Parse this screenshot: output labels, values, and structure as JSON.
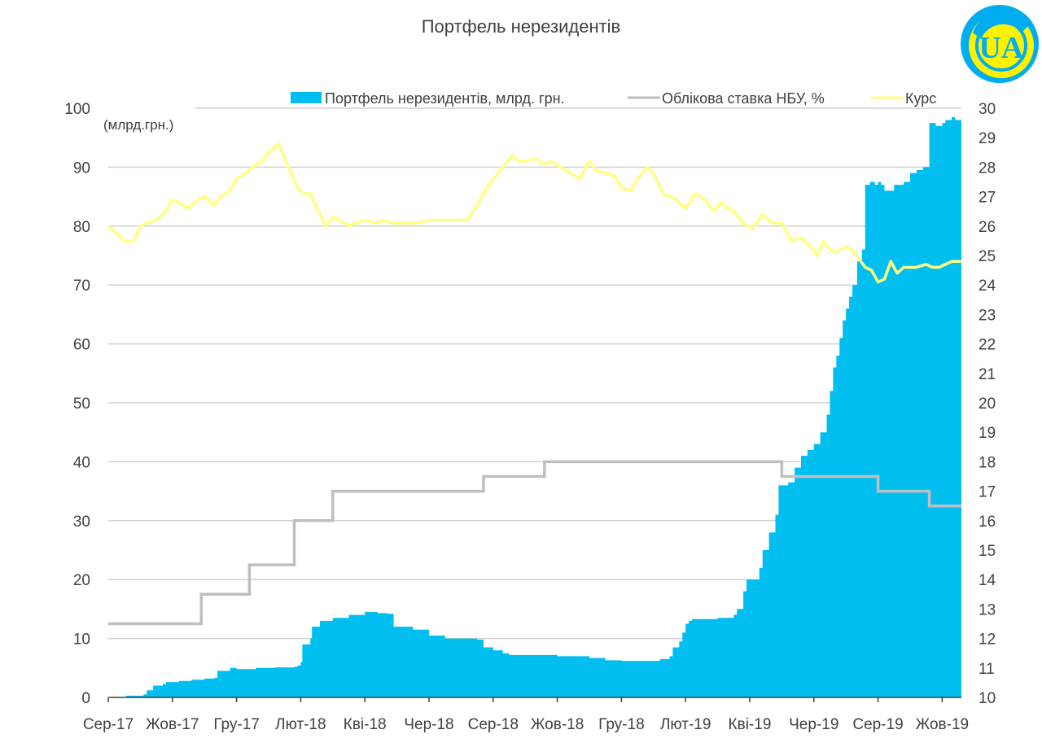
{
  "chart_data": {
    "type": "area",
    "title": "Портфель нерезидентів",
    "unit_label": "(млрд.грн.)",
    "categories": [
      "Сер-17",
      "Жов-17",
      "Гру-17",
      "Лют-18",
      "Кві-18",
      "Чер-18",
      "Сер-18",
      "Жов-18",
      "Гру-18",
      "Лют-19",
      "Кві-19",
      "Чер-19",
      "Сер-19",
      "Жов-19"
    ],
    "category_months": [
      0,
      2,
      4,
      6,
      8,
      10,
      12,
      14,
      16,
      18,
      20,
      22,
      24,
      26
    ],
    "x_range_months": [
      0,
      26.6
    ],
    "y_left": {
      "min": 0,
      "max": 100,
      "ticks": [
        0,
        10,
        20,
        30,
        40,
        50,
        60,
        70,
        80,
        90,
        100
      ]
    },
    "y_right": {
      "min": 10,
      "max": 30,
      "ticks": [
        10,
        11,
        12,
        13,
        14,
        15,
        16,
        17,
        18,
        19,
        20,
        21,
        22,
        23,
        24,
        25,
        26,
        27,
        28,
        29,
        30
      ]
    },
    "grid": true,
    "legend_position": "top",
    "series": [
      {
        "name": "Портфель нерезидентів, млрд. грн.",
        "type": "area",
        "axis": "left",
        "color": "#00BFF0",
        "x": [
          0,
          0.5,
          0.55,
          1.1,
          1.2,
          1.4,
          1.7,
          1.8,
          2.2,
          2.6,
          3.0,
          3.3,
          3.4,
          3.8,
          4.0,
          4.5,
          4.6,
          5.2,
          5.8,
          5.9,
          6.0,
          6.05,
          6.3,
          6.35,
          6.6,
          7.0,
          7.5,
          8.0,
          8.4,
          8.7,
          8.9,
          9.5,
          10.0,
          10.5,
          11.0,
          11.5,
          11.7,
          12.0,
          12.3,
          12.5,
          13.0,
          14.0,
          15.0,
          15.5,
          16.0,
          16.5,
          17.2,
          17.5,
          17.6,
          17.8,
          17.9,
          18.0,
          18.1,
          18.2,
          18.6,
          19.0,
          19.5,
          19.6,
          19.8,
          19.9,
          20.3,
          20.4,
          20.6,
          20.8,
          20.9,
          21.0,
          21.2,
          21.4,
          21.6,
          21.8,
          22.0,
          22.2,
          22.4,
          22.5,
          22.6,
          22.7,
          22.8,
          22.9,
          23.0,
          23.1,
          23.2,
          23.35,
          23.5,
          23.6,
          23.75,
          23.9,
          24.0,
          24.1,
          24.2,
          24.5,
          24.8,
          25.0,
          25.2,
          25.4,
          25.6,
          25.8,
          26.0,
          26.1,
          26.3,
          26.4,
          26.6
        ],
        "values": [
          0,
          0,
          0.3,
          0.5,
          1.2,
          2.0,
          2.3,
          2.6,
          2.8,
          3.0,
          3.2,
          3.3,
          4.5,
          5.0,
          4.8,
          4.8,
          5.0,
          5.1,
          5.2,
          5.4,
          6.0,
          9.0,
          10.0,
          12.0,
          13.0,
          13.5,
          14.0,
          14.5,
          14.3,
          14.2,
          12.0,
          11.5,
          10.5,
          10.0,
          10.0,
          9.8,
          8.5,
          8.0,
          7.5,
          7.2,
          7.2,
          7.0,
          6.7,
          6.3,
          6.2,
          6.2,
          6.5,
          7.0,
          8.5,
          9.5,
          11.0,
          12.5,
          13.0,
          13.3,
          13.3,
          13.5,
          14.0,
          15.0,
          18.0,
          20.0,
          22.0,
          25.0,
          28.0,
          31.0,
          36.0,
          36.0,
          36.5,
          39.0,
          41.0,
          42.0,
          43.0,
          45.0,
          48.0,
          52.0,
          56.0,
          58.0,
          61.0,
          64.0,
          66.0,
          68.0,
          70.0,
          74.0,
          76.0,
          87.0,
          87.5,
          87.0,
          87.5,
          87.0,
          86.0,
          87.0,
          87.5,
          89.0,
          89.5,
          90.0,
          97.5,
          97.0,
          97.5,
          98.0,
          98.5,
          98.0,
          98.0
        ]
      },
      {
        "name": "Облікова ставка НБУ, %",
        "type": "step",
        "axis": "right",
        "color": "#BFBFBF",
        "x": [
          0,
          2.9,
          4.4,
          5.8,
          7.0,
          11.7,
          13.6,
          21.0,
          24.0,
          25.6,
          26.6
        ],
        "values": [
          12.5,
          13.5,
          14.5,
          16.0,
          17.0,
          17.5,
          18.0,
          17.5,
          17.0,
          16.5,
          16.5
        ]
      },
      {
        "name": "Курс",
        "type": "line",
        "axis": "right",
        "color": "#FFFF80",
        "x": [
          0,
          0.3,
          0.5,
          0.8,
          1.0,
          1.2,
          1.5,
          1.8,
          2.0,
          2.2,
          2.5,
          2.8,
          3.0,
          3.3,
          3.5,
          3.8,
          4.0,
          4.3,
          4.5,
          4.8,
          5.0,
          5.3,
          5.5,
          5.7,
          5.9,
          6.1,
          6.3,
          6.5,
          6.8,
          7.0,
          7.2,
          7.5,
          7.7,
          8.0,
          8.3,
          8.6,
          8.8,
          9.0,
          9.3,
          9.6,
          10.0,
          10.4,
          10.8,
          11.2,
          11.5,
          11.8,
          12.0,
          12.3,
          12.6,
          12.8,
          13.0,
          13.3,
          13.6,
          13.8,
          14.1,
          14.4,
          14.7,
          15.0,
          15.2,
          15.5,
          15.8,
          16.0,
          16.3,
          16.5,
          16.8,
          17.0,
          17.3,
          17.5,
          17.7,
          18.0,
          18.3,
          18.6,
          18.9,
          19.1,
          19.3,
          19.5,
          19.8,
          20.1,
          20.4,
          20.7,
          21.0,
          21.3,
          21.6,
          21.9,
          22.1,
          22.3,
          22.5,
          22.7,
          23.0,
          23.2,
          23.4,
          23.6,
          23.8,
          24.0,
          24.2,
          24.4,
          24.6,
          24.8,
          25.0,
          25.2,
          25.5,
          25.7,
          25.9,
          26.1,
          26.3,
          26.6
        ],
        "values": [
          26.0,
          25.7,
          25.5,
          25.5,
          26.0,
          26.1,
          26.2,
          26.5,
          26.9,
          26.8,
          26.6,
          26.9,
          27.0,
          26.7,
          27.0,
          27.2,
          27.6,
          27.8,
          28.0,
          28.2,
          28.5,
          28.8,
          28.3,
          27.8,
          27.3,
          27.1,
          27.1,
          26.6,
          26.0,
          26.3,
          26.2,
          26.0,
          26.1,
          26.2,
          26.1,
          26.2,
          26.1,
          26.1,
          26.1,
          26.1,
          26.2,
          26.2,
          26.2,
          26.2,
          26.7,
          27.3,
          27.6,
          28.0,
          28.4,
          28.2,
          28.2,
          28.3,
          28.1,
          28.2,
          28.0,
          27.8,
          27.6,
          28.2,
          27.9,
          27.8,
          27.7,
          27.3,
          27.2,
          27.6,
          28.0,
          27.8,
          27.1,
          27.0,
          26.9,
          26.6,
          27.1,
          26.9,
          26.5,
          26.8,
          26.6,
          26.5,
          26.1,
          25.9,
          26.4,
          26.1,
          26.1,
          25.5,
          25.6,
          25.3,
          25.0,
          25.5,
          25.2,
          25.1,
          25.3,
          25.2,
          24.9,
          24.6,
          24.5,
          24.1,
          24.2,
          24.8,
          24.4,
          24.6,
          24.6,
          24.6,
          24.7,
          24.6,
          24.6,
          24.7,
          24.8,
          24.8
        ]
      }
    ]
  },
  "logo": {
    "text": "UA",
    "colors": [
      "#00AEEF",
      "#FFF200"
    ]
  }
}
